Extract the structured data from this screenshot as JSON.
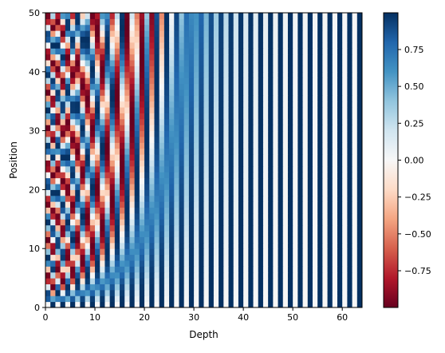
{
  "chart_data": {
    "type": "heatmap",
    "title": "",
    "xlabel": "Depth",
    "ylabel": "Position",
    "xlim": [
      0,
      64
    ],
    "ylim": [
      0,
      50
    ],
    "x_ticks": [
      0,
      10,
      20,
      30,
      40,
      50,
      60
    ],
    "y_ticks": [
      0,
      10,
      20,
      30,
      40,
      50
    ],
    "n_depth": 64,
    "n_position": 50,
    "colormap": "RdBu",
    "color_range": [
      -1,
      1
    ],
    "colorbar_ticks": [
      0.75,
      0.5,
      0.25,
      0.0,
      -0.25,
      -0.5,
      -0.75
    ],
    "colorbar_tick_labels": [
      "0.75",
      "0.50",
      "0.25",
      "0.00",
      "−0.25",
      "−0.50",
      "−0.75"
    ],
    "grid": false
  }
}
